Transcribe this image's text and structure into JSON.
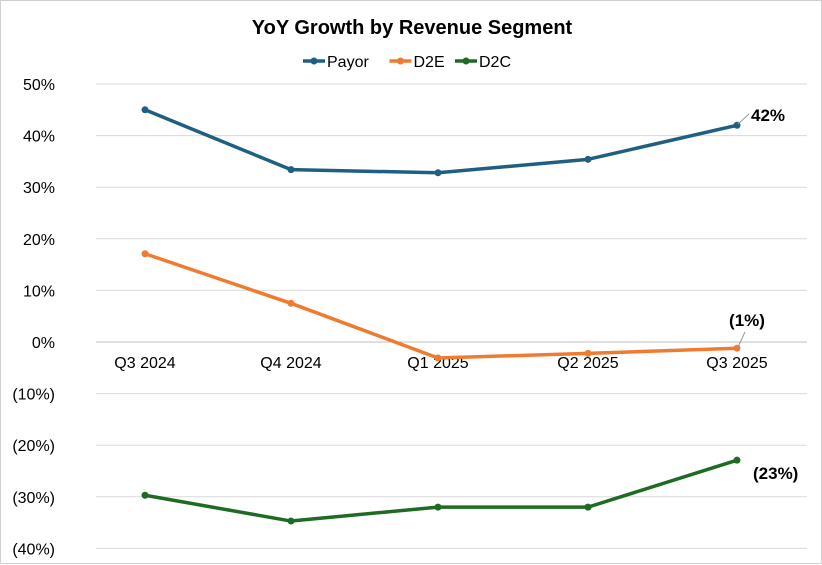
{
  "chart_data": {
    "type": "line",
    "title": "YoY Growth by Revenue Segment",
    "categories": [
      "Q3 2024",
      "Q4 2024",
      "Q1 2025",
      "Q2 2025",
      "Q3 2025"
    ],
    "ylim": [
      -40,
      50
    ],
    "yticks": [
      50,
      40,
      30,
      20,
      10,
      0,
      -10,
      -20,
      -30,
      -40
    ],
    "ytick_labels": [
      "50%",
      "40%",
      "30%",
      "20%",
      "10%",
      "0%",
      "(10%)",
      "(20%)",
      "(30%)",
      "(40%)"
    ],
    "grid": true,
    "legend": "top",
    "series": [
      {
        "name": "Payor",
        "color": "#1f5f82",
        "values": [
          45.0,
          33.4,
          32.8,
          35.4,
          42.0
        ],
        "end_label": "42%"
      },
      {
        "name": "D2E",
        "color": "#ee7b30",
        "values": [
          17.1,
          7.5,
          -3.1,
          -2.2,
          -1.2
        ],
        "end_label": "(1%)"
      },
      {
        "name": "D2C",
        "color": "#1e6b23",
        "values": [
          -29.7,
          -34.7,
          -32.0,
          -32.0,
          -22.9
        ],
        "end_label": "(23%)"
      }
    ]
  }
}
